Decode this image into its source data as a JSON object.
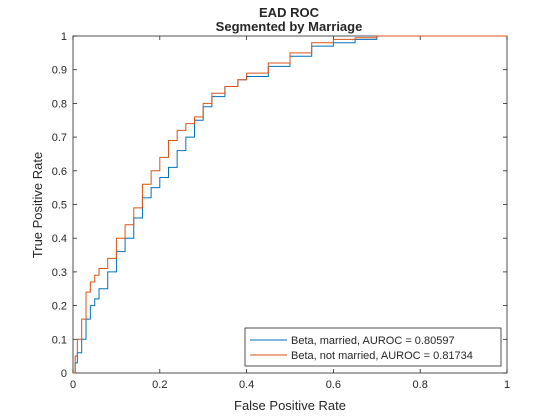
{
  "chart_data": {
    "type": "line",
    "title": "EAD ROC",
    "subtitle": "Segmented by Marriage",
    "xlabel": "False Positive Rate",
    "ylabel": "True Positive Rate",
    "xlim": [
      0,
      1
    ],
    "ylim": [
      0,
      1
    ],
    "x_ticks": [
      "0",
      "0.2",
      "0.4",
      "0.6",
      "0.8",
      "1"
    ],
    "y_ticks": [
      "0",
      "0.1",
      "0.2",
      "0.3",
      "0.4",
      "0.5",
      "0.6",
      "0.7",
      "0.8",
      "0.9",
      "1"
    ],
    "grid": false,
    "legend_position": "bottom-right",
    "series": [
      {
        "name": "Beta, married, AUROC = 0.80597",
        "color": "#0072BD",
        "x": [
          0,
          0.005,
          0.01,
          0.02,
          0.03,
          0.04,
          0.05,
          0.06,
          0.08,
          0.1,
          0.12,
          0.14,
          0.16,
          0.18,
          0.2,
          0.22,
          0.24,
          0.26,
          0.28,
          0.3,
          0.32,
          0.35,
          0.38,
          0.4,
          0.45,
          0.5,
          0.55,
          0.6,
          0.65,
          0.7,
          0.75,
          0.8,
          0.9,
          1
        ],
        "y": [
          0,
          0.03,
          0.06,
          0.1,
          0.16,
          0.2,
          0.22,
          0.25,
          0.3,
          0.36,
          0.4,
          0.46,
          0.52,
          0.55,
          0.58,
          0.61,
          0.66,
          0.7,
          0.75,
          0.79,
          0.82,
          0.85,
          0.87,
          0.88,
          0.91,
          0.94,
          0.97,
          0.98,
          0.99,
          1,
          1,
          1,
          1,
          1
        ]
      },
      {
        "name": "Beta, not married, AUROC = 0.81734",
        "color": "#D95319",
        "x": [
          0,
          0.005,
          0.01,
          0.02,
          0.03,
          0.04,
          0.05,
          0.06,
          0.08,
          0.1,
          0.12,
          0.14,
          0.16,
          0.18,
          0.2,
          0.22,
          0.24,
          0.26,
          0.28,
          0.3,
          0.32,
          0.35,
          0.38,
          0.4,
          0.45,
          0.5,
          0.55,
          0.6,
          0.65,
          0.7,
          0.75,
          0.8,
          0.9,
          1
        ],
        "y": [
          0,
          0.05,
          0.1,
          0.16,
          0.24,
          0.27,
          0.29,
          0.31,
          0.34,
          0.4,
          0.44,
          0.49,
          0.56,
          0.6,
          0.64,
          0.69,
          0.72,
          0.74,
          0.76,
          0.8,
          0.83,
          0.85,
          0.87,
          0.89,
          0.92,
          0.95,
          0.98,
          0.99,
          0.995,
          1,
          1,
          1,
          1,
          1
        ]
      }
    ]
  }
}
